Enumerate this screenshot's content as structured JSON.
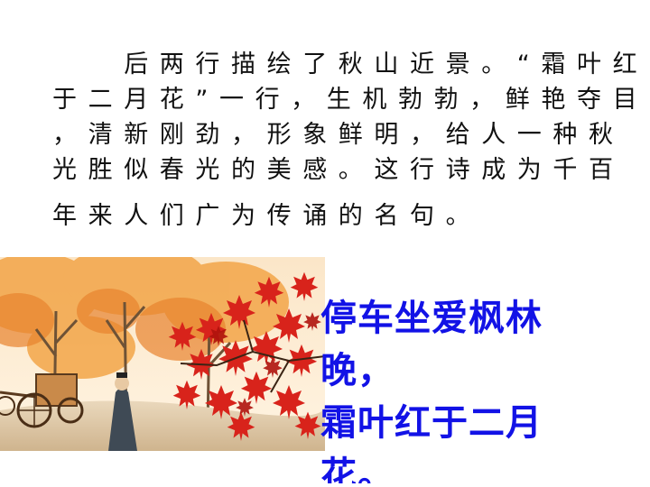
{
  "paragraph": {
    "lines": [
      "　　后两行描绘了秋山近景。“霜叶红",
      "于二月花”一行，生机勃勃，鲜艳夺目",
      "，清新刚劲，形象鲜明，给人一种秋",
      "光胜似春光的美感。这行诗成为千百",
      "年来人们广为传诵的名句。"
    ]
  },
  "poem": {
    "lines": [
      "停车坐爱枫林",
      "晚，",
      "霜叶红于二月",
      "花。"
    ],
    "color": "#1212e6"
  },
  "colors": {
    "maple_red": "#d8231b",
    "autumn_orange": "#f0a040",
    "background": "#ffffff"
  }
}
